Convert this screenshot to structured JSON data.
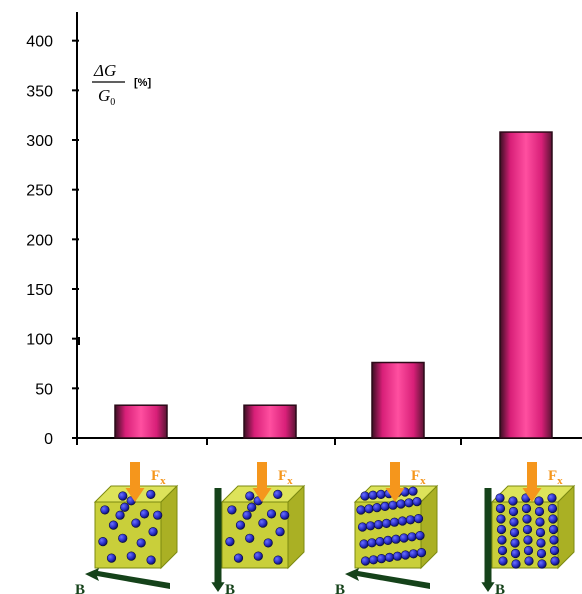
{
  "chart_data": {
    "type": "bar",
    "categories": [
      "",
      "",
      "",
      ""
    ],
    "values": [
      33,
      33,
      76,
      308
    ],
    "ylim": [
      0,
      500
    ],
    "yticks": [
      0,
      50,
      100,
      150,
      200,
      250,
      300,
      350,
      400,
      500
    ],
    "ylabel": {
      "numerator": "ΔG",
      "denominator": "G0",
      "denominator_base": "G",
      "denominator_sub": "0",
      "unit": "[%]"
    },
    "grid": false,
    "legend": "none",
    "bar_color": "#ee2a88",
    "bar_edge": "#2b0a18"
  },
  "illustrations": [
    {
      "force_label": "F",
      "force_sub": "x",
      "field_label": "B",
      "field_direction": "horizontal",
      "particles": "random"
    },
    {
      "force_label": "F",
      "force_sub": "x",
      "field_label": "B",
      "field_direction": "vertical",
      "particles": "random"
    },
    {
      "force_label": "F",
      "force_sub": "x",
      "field_label": "B",
      "field_direction": "horizontal",
      "particles": "horizontal-chains"
    },
    {
      "force_label": "F",
      "force_sub": "x",
      "field_label": "B",
      "field_direction": "vertical",
      "particles": "vertical-chains"
    }
  ],
  "colors": {
    "force_arrow": "#f5961c",
    "field_arrow": "#15421a",
    "cube": "#c9cf3a",
    "particle": "#2a2ec8"
  }
}
